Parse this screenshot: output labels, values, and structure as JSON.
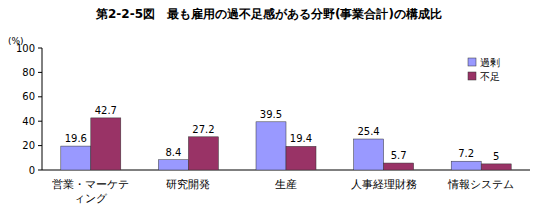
{
  "chart_data": {
    "type": "bar",
    "title": "第2-2-5図　最も雇用の過不足感がある分野(事業合計)の構成比",
    "y_label": "(%)",
    "categories": [
      "営業・マーケティング",
      "研究開発",
      "生産",
      "人事経理財務",
      "情報システム"
    ],
    "series": [
      {
        "name": "過剰",
        "color": "#9999ff",
        "values": [
          19.6,
          8.4,
          39.5,
          25.4,
          7.2
        ]
      },
      {
        "name": "不足",
        "color": "#993366",
        "values": [
          42.7,
          27.2,
          19.4,
          5.7,
          5.0
        ]
      }
    ],
    "ylim": [
      0,
      100
    ],
    "yticks": [
      0,
      20,
      40,
      60,
      80,
      100
    ],
    "grid": false,
    "legend": "top-right",
    "data_labels": true
  }
}
